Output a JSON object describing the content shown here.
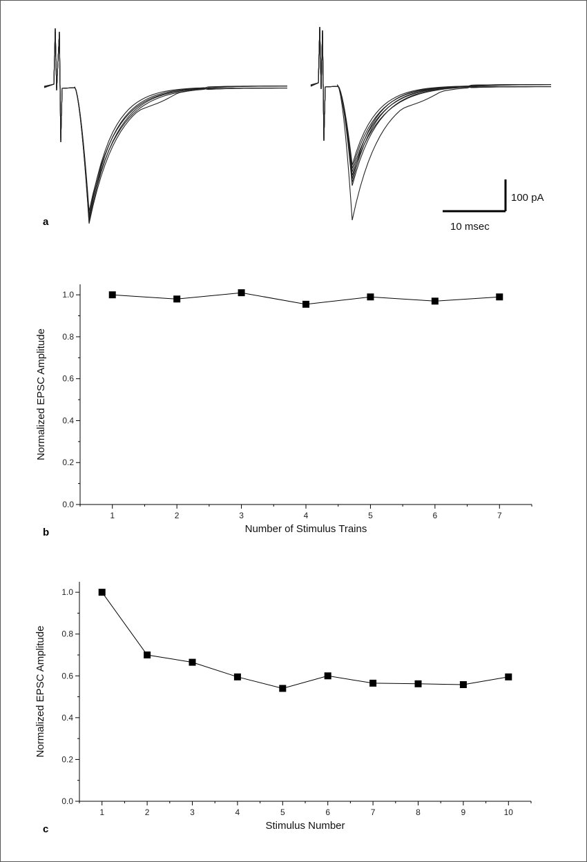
{
  "panels": {
    "a": {
      "label": "a",
      "scale_bar": {
        "y_label": "100 pA",
        "x_label": "10 msec"
      }
    },
    "b": {
      "label": "b"
    },
    "c": {
      "label": "c"
    }
  },
  "chart_data": [
    {
      "type": "line",
      "panel": "b",
      "xlabel": "Number of Stimulus Trains",
      "ylabel": "Normalized EPSC Amplitude",
      "x": [
        1,
        2,
        3,
        4,
        5,
        6,
        7
      ],
      "series": [
        {
          "values": [
            1.0,
            0.98,
            1.01,
            0.955,
            0.99,
            0.97,
            0.99
          ]
        }
      ],
      "xlim": [
        0.5,
        7.5
      ],
      "ylim": [
        0,
        1.05
      ],
      "yticks": [
        0.0,
        0.2,
        0.4,
        0.6,
        0.8,
        1.0
      ],
      "ytick_labels": [
        "0.0",
        "0.2",
        "0.4",
        "0.6",
        "0.8",
        "1.0"
      ],
      "xticks": [
        1,
        2,
        3,
        4,
        5,
        6,
        7
      ],
      "xtick_labels": [
        "1",
        "2",
        "3",
        "4",
        "5",
        "6",
        "7"
      ],
      "marker": "square",
      "grid": false
    },
    {
      "type": "line",
      "panel": "c",
      "xlabel": "Stimulus Number",
      "ylabel": "Normalized EPSC Amplitude",
      "x": [
        1,
        2,
        3,
        4,
        5,
        6,
        7,
        8,
        9,
        10
      ],
      "series": [
        {
          "values": [
            1.0,
            0.7,
            0.665,
            0.595,
            0.54,
            0.6,
            0.565,
            0.562,
            0.558,
            0.595
          ]
        }
      ],
      "xlim": [
        0.5,
        10.5
      ],
      "ylim": [
        0,
        1.05
      ],
      "yticks": [
        0.0,
        0.2,
        0.4,
        0.6,
        0.8,
        1.0
      ],
      "ytick_labels": [
        "0.0",
        "0.2",
        "0.4",
        "0.6",
        "0.8",
        "1.0"
      ],
      "xticks": [
        1,
        2,
        3,
        4,
        5,
        6,
        7,
        8,
        9,
        10
      ],
      "xtick_labels": [
        "1",
        "2",
        "3",
        "4",
        "5",
        "6",
        "7",
        "8",
        "9",
        "10"
      ],
      "marker": "square",
      "grid": false
    }
  ]
}
